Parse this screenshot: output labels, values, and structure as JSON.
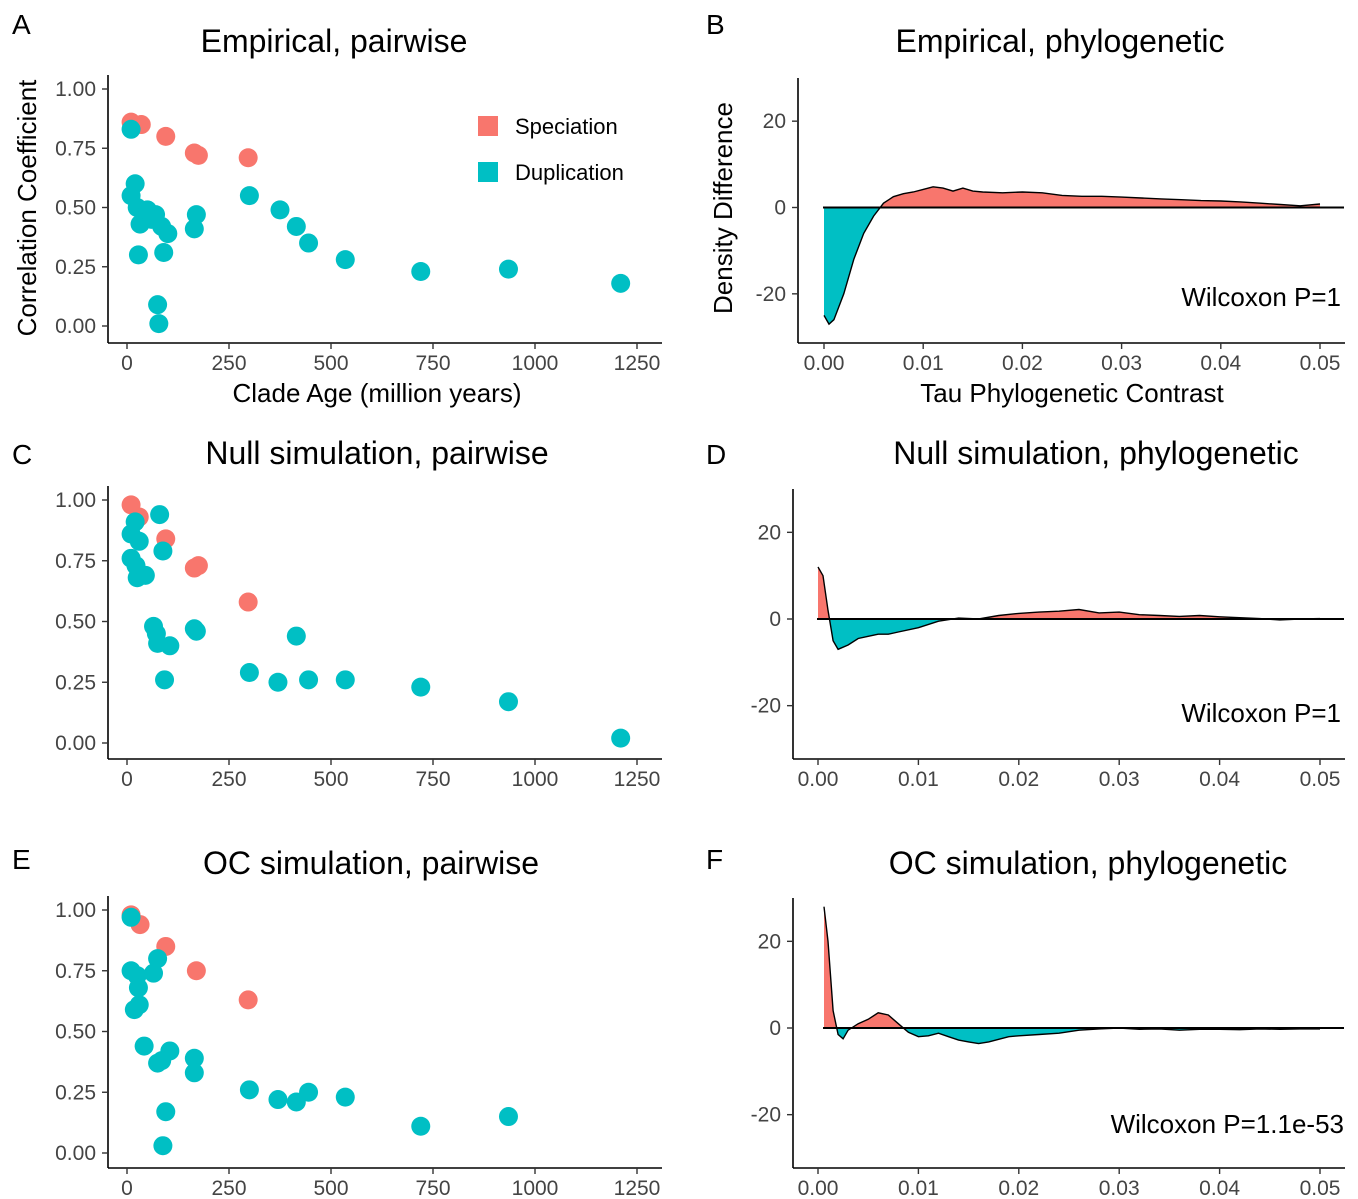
{
  "colors": {
    "speciation": "#F8766D",
    "duplication": "#00BFC4"
  },
  "legend": {
    "items": [
      "Speciation",
      "Duplication"
    ]
  },
  "chart_data": [
    {
      "panel": "A",
      "type": "scatter",
      "title": "Empirical, pairwise",
      "xlabel": "Clade Age (million years)",
      "ylabel": "Correlation Coefficient",
      "xlim": [
        0,
        1250
      ],
      "ylim": [
        0,
        1
      ],
      "xticks": [
        "0",
        "250",
        "500",
        "750",
        "1000",
        "1250"
      ],
      "yticks": [
        "0.00",
        "0.25",
        "0.50",
        "0.75",
        "1.00"
      ],
      "series": [
        {
          "name": "Speciation",
          "x": [
            10,
            35,
            95,
            165,
            175,
            297
          ],
          "y": [
            0.86,
            0.85,
            0.8,
            0.73,
            0.72,
            0.71
          ]
        },
        {
          "name": "Duplication",
          "x": [
            10,
            20,
            10,
            25,
            50,
            70,
            32,
            60,
            85,
            100,
            165,
            170,
            28,
            90,
            75,
            78,
            300,
            375,
            415,
            445,
            535,
            720,
            935,
            1210
          ],
          "y": [
            0.83,
            0.6,
            0.55,
            0.5,
            0.49,
            0.47,
            0.43,
            0.45,
            0.42,
            0.39,
            0.41,
            0.47,
            0.3,
            0.31,
            0.09,
            0.01,
            0.55,
            0.49,
            0.42,
            0.35,
            0.28,
            0.23,
            0.24,
            0.18
          ]
        }
      ]
    },
    {
      "panel": "B",
      "type": "area",
      "title": "Empirical, phylogenetic",
      "xlabel": "Tau Phylogenetic Contrast",
      "ylabel": "Density Difference",
      "xlim": [
        0,
        0.05
      ],
      "ylim": [
        -30,
        30
      ],
      "xticks": [
        "0.00",
        "0.01",
        "0.02",
        "0.03",
        "0.04",
        "0.05"
      ],
      "yticks": [
        "-20",
        "0",
        "20"
      ],
      "annotation": "Wilcoxon P=1",
      "x": [
        0.0,
        0.0005,
        0.001,
        0.002,
        0.003,
        0.004,
        0.005,
        0.006,
        0.007,
        0.008,
        0.009,
        0.01,
        0.011,
        0.012,
        0.013,
        0.014,
        0.015,
        0.016,
        0.018,
        0.02,
        0.022,
        0.024,
        0.026,
        0.028,
        0.03,
        0.032,
        0.034,
        0.036,
        0.038,
        0.04,
        0.042,
        0.044,
        0.046,
        0.048,
        0.05
      ],
      "y": [
        -25,
        -27,
        -26,
        -20,
        -12,
        -6,
        -2,
        1,
        2.5,
        3.2,
        3.6,
        4.2,
        4.8,
        4.5,
        3.8,
        4.5,
        3.8,
        3.6,
        3.4,
        3.6,
        3.4,
        2.8,
        2.6,
        2.6,
        2.4,
        2.2,
        2.0,
        1.8,
        1.6,
        1.5,
        1.3,
        1.0,
        0.7,
        0.4,
        0.8
      ]
    },
    {
      "panel": "C",
      "type": "scatter",
      "title": "Null simulation, pairwise",
      "xlabel": "",
      "ylabel": "",
      "xlim": [
        0,
        1250
      ],
      "ylim": [
        0,
        1
      ],
      "xticks": [
        "0",
        "250",
        "500",
        "750",
        "1000",
        "1250"
      ],
      "yticks": [
        "0.00",
        "0.25",
        "0.50",
        "0.75",
        "1.00"
      ],
      "series": [
        {
          "name": "Speciation",
          "x": [
            10,
            30,
            95,
            165,
            175,
            297
          ],
          "y": [
            0.98,
            0.93,
            0.84,
            0.72,
            0.73,
            0.58
          ]
        },
        {
          "name": "Duplication",
          "x": [
            10,
            20,
            30,
            80,
            10,
            22,
            25,
            45,
            88,
            65,
            72,
            75,
            105,
            165,
            170,
            92,
            300,
            370,
            415,
            445,
            535,
            720,
            935,
            1210
          ],
          "y": [
            0.86,
            0.91,
            0.83,
            0.94,
            0.76,
            0.73,
            0.68,
            0.69,
            0.79,
            0.48,
            0.45,
            0.41,
            0.4,
            0.47,
            0.46,
            0.26,
            0.29,
            0.25,
            0.44,
            0.26,
            0.26,
            0.23,
            0.17,
            0.02
          ]
        }
      ]
    },
    {
      "panel": "D",
      "type": "area",
      "title": "Null simulation, phylogenetic",
      "xlabel": "",
      "ylabel": "",
      "xlim": [
        0,
        0.05
      ],
      "ylim": [
        -30,
        30
      ],
      "xticks": [
        "0.00",
        "0.01",
        "0.02",
        "0.03",
        "0.04",
        "0.05"
      ],
      "yticks": [
        "-20",
        "0",
        "20"
      ],
      "annotation": "Wilcoxon P=1",
      "x": [
        0.0,
        0.0005,
        0.001,
        0.0015,
        0.002,
        0.003,
        0.004,
        0.005,
        0.006,
        0.007,
        0.008,
        0.01,
        0.012,
        0.014,
        0.016,
        0.018,
        0.02,
        0.022,
        0.024,
        0.026,
        0.028,
        0.03,
        0.032,
        0.034,
        0.036,
        0.038,
        0.04,
        0.042,
        0.044,
        0.046,
        0.048,
        0.05
      ],
      "y": [
        12,
        10,
        2,
        -5,
        -7,
        -6,
        -4.5,
        -4,
        -3.5,
        -3.5,
        -3,
        -2,
        -0.5,
        0.2,
        0,
        0.8,
        1.3,
        1.6,
        1.8,
        2.2,
        1.4,
        1.6,
        1.0,
        0.8,
        0.6,
        0.8,
        0.5,
        0.3,
        0.1,
        -0.2,
        0.0,
        0.1
      ]
    },
    {
      "panel": "E",
      "type": "scatter",
      "title": "OC simulation, pairwise",
      "xlabel": "",
      "ylabel": "",
      "xlim": [
        0,
        1250
      ],
      "ylim": [
        0,
        1
      ],
      "xticks": [
        "0",
        "250",
        "500",
        "750",
        "1000",
        "1250"
      ],
      "yticks": [
        "0.00",
        "0.25",
        "0.50",
        "0.75",
        "1.00"
      ],
      "series": [
        {
          "name": "Speciation",
          "x": [
            10,
            32,
            95,
            170,
            297
          ],
          "y": [
            0.98,
            0.94,
            0.85,
            0.75,
            0.63
          ]
        },
        {
          "name": "Duplication",
          "x": [
            10,
            10,
            25,
            28,
            75,
            65,
            18,
            30,
            42,
            75,
            105,
            85,
            165,
            165,
            95,
            88,
            300,
            370,
            415,
            445,
            535,
            720,
            935
          ],
          "y": [
            0.97,
            0.75,
            0.73,
            0.68,
            0.8,
            0.74,
            0.59,
            0.61,
            0.44,
            0.37,
            0.42,
            0.38,
            0.39,
            0.33,
            0.17,
            0.03,
            0.26,
            0.22,
            0.21,
            0.25,
            0.23,
            0.11,
            0.15
          ]
        }
      ]
    },
    {
      "panel": "F",
      "type": "area",
      "title": "OC simulation, phylogenetic",
      "xlabel": "",
      "ylabel": "",
      "xlim": [
        0,
        0.05
      ],
      "ylim": [
        -30,
        30
      ],
      "xticks": [
        "0.00",
        "0.01",
        "0.02",
        "0.03",
        "0.04",
        "0.05"
      ],
      "yticks": [
        "-20",
        "0",
        "20"
      ],
      "annotation": "Wilcoxon P=1.1e-53",
      "x": [
        0.0006,
        0.001,
        0.0015,
        0.002,
        0.0025,
        0.003,
        0.004,
        0.005,
        0.006,
        0.007,
        0.008,
        0.009,
        0.01,
        0.011,
        0.012,
        0.013,
        0.014,
        0.015,
        0.016,
        0.017,
        0.018,
        0.019,
        0.02,
        0.022,
        0.024,
        0.026,
        0.028,
        0.03,
        0.032,
        0.034,
        0.036,
        0.038,
        0.04,
        0.042,
        0.044,
        0.046,
        0.048,
        0.05
      ],
      "y": [
        28,
        20,
        4,
        -1.5,
        -2.5,
        -0.5,
        1,
        2,
        3.5,
        3,
        1,
        -1,
        -2,
        -1.8,
        -1.2,
        -2,
        -2.8,
        -3.2,
        -3.6,
        -3.2,
        -2.6,
        -2,
        -1.8,
        -1.5,
        -1.2,
        -0.5,
        -0.2,
        0,
        -0.3,
        -0.2,
        -0.5,
        -0.3,
        -0.3,
        -0.4,
        -0.2,
        -0.3,
        -0.2,
        -0.2
      ]
    }
  ]
}
